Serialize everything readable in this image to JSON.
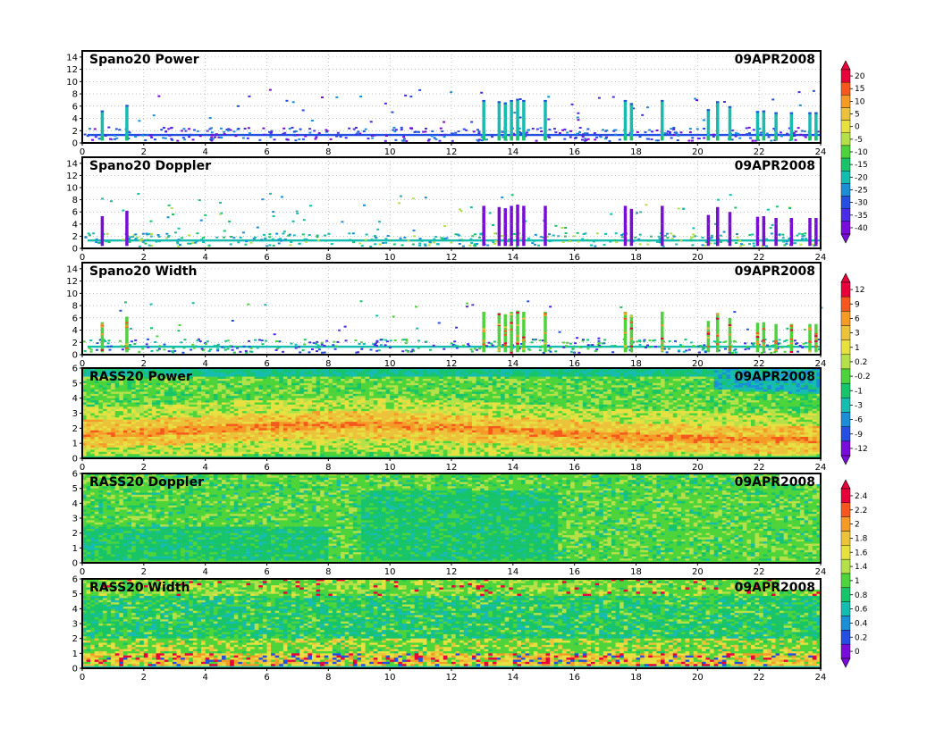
{
  "chart_data": [
    {
      "type": "heatmap",
      "title": "Spano20  Power",
      "date": "09APR2008",
      "x_ticks": [
        "0",
        "2",
        "4",
        "6",
        "8",
        "10",
        "12",
        "14",
        "16",
        "18",
        "20",
        "22",
        "24"
      ],
      "y_ticks": [
        "0",
        "2",
        "4",
        "6",
        "8",
        "10",
        "12",
        "14"
      ],
      "xlim": [
        0,
        24
      ],
      "ylim": [
        0,
        15
      ],
      "grid": true,
      "colorbar": {
        "labels": [
          "20",
          "15",
          "10",
          "5",
          "0",
          "-5",
          "-10",
          "-15",
          "-20",
          "-25",
          "-30",
          "-35",
          "-40"
        ],
        "colors": [
          "#e8003a",
          "#f5581c",
          "#f59a26",
          "#ecc23a",
          "#e6e040",
          "#b4e048",
          "#4cd43a",
          "#18c46a",
          "#16bcb0",
          "#1b8ed8",
          "#2350e0",
          "#4a2ce4",
          "#7a0cd8"
        ]
      },
      "series_kind": "sparse_power",
      "dominant_color": "#16bcb0",
      "columns": [
        [
          0.6,
          5.3
        ],
        [
          1.4,
          6.2
        ],
        [
          13.0,
          7.0
        ],
        [
          13.5,
          6.8
        ],
        [
          13.7,
          6.6
        ],
        [
          13.9,
          7.0
        ],
        [
          14.1,
          7.2
        ],
        [
          14.3,
          7.0
        ],
        [
          15.0,
          7.0
        ],
        [
          17.6,
          7.0
        ],
        [
          17.8,
          6.5
        ],
        [
          18.8,
          7.0
        ],
        [
          20.3,
          5.5
        ],
        [
          20.6,
          6.8
        ],
        [
          21.0,
          6.0
        ],
        [
          21.9,
          5.2
        ],
        [
          22.1,
          5.3
        ],
        [
          22.5,
          5.0
        ],
        [
          23.0,
          5.0
        ],
        [
          23.6,
          5.0
        ],
        [
          23.8,
          5.0
        ]
      ]
    },
    {
      "type": "heatmap",
      "title": "Spano20  Doppler",
      "date": "09APR2008",
      "x_ticks": [
        "0",
        "2",
        "4",
        "6",
        "8",
        "10",
        "12",
        "14",
        "16",
        "18",
        "20",
        "22",
        "24"
      ],
      "y_ticks": [
        "0",
        "2",
        "4",
        "6",
        "8",
        "10",
        "12",
        "14"
      ],
      "xlim": [
        0,
        24
      ],
      "ylim": [
        0,
        15
      ],
      "grid": true,
      "series_kind": "sparse_doppler",
      "dominant_color": "#6b10d8",
      "columns": [
        [
          0.6,
          5.3
        ],
        [
          1.4,
          6.2
        ],
        [
          13.0,
          7.0
        ],
        [
          13.5,
          6.8
        ],
        [
          13.7,
          6.6
        ],
        [
          13.9,
          7.0
        ],
        [
          14.1,
          7.2
        ],
        [
          14.3,
          7.0
        ],
        [
          15.0,
          7.0
        ],
        [
          17.6,
          7.0
        ],
        [
          17.8,
          6.5
        ],
        [
          18.8,
          7.0
        ],
        [
          20.3,
          5.5
        ],
        [
          20.6,
          6.8
        ],
        [
          21.0,
          6.0
        ],
        [
          21.9,
          5.2
        ],
        [
          22.1,
          5.3
        ],
        [
          22.5,
          5.0
        ],
        [
          23.0,
          5.0
        ],
        [
          23.6,
          5.0
        ],
        [
          23.8,
          5.0
        ]
      ]
    },
    {
      "type": "heatmap",
      "title": "Spano20  Width",
      "date": "09APR2008",
      "x_ticks": [
        "0",
        "2",
        "4",
        "6",
        "8",
        "10",
        "12",
        "14",
        "16",
        "18",
        "20",
        "22",
        "24"
      ],
      "y_ticks": [
        "0",
        "2",
        "4",
        "6",
        "8",
        "10",
        "12",
        "14"
      ],
      "xlim": [
        0,
        24
      ],
      "ylim": [
        0,
        15
      ],
      "grid": true,
      "colorbar": {
        "labels": [
          "12",
          "9",
          "6",
          "3",
          "1",
          "0.2",
          "-0.2",
          "-1",
          "-3",
          "-6",
          "-9",
          "-12"
        ],
        "colors": [
          "#e8003a",
          "#f5581c",
          "#f59a26",
          "#ecc23a",
          "#e6e040",
          "#b4e048",
          "#4cd43a",
          "#18c46a",
          "#16bcb0",
          "#1b8ed8",
          "#2350e0",
          "#7a0cd8"
        ]
      },
      "series_kind": "sparse_width",
      "dominant_color": "#4cd43a",
      "columns": [
        [
          0.6,
          5.3
        ],
        [
          1.4,
          6.2
        ],
        [
          13.0,
          7.0
        ],
        [
          13.5,
          6.8
        ],
        [
          13.7,
          6.6
        ],
        [
          13.9,
          7.0
        ],
        [
          14.1,
          7.2
        ],
        [
          14.3,
          7.0
        ],
        [
          15.0,
          7.0
        ],
        [
          17.6,
          7.0
        ],
        [
          17.8,
          6.5
        ],
        [
          18.8,
          7.0
        ],
        [
          20.3,
          5.5
        ],
        [
          20.6,
          6.8
        ],
        [
          21.0,
          6.0
        ],
        [
          21.9,
          5.2
        ],
        [
          22.1,
          5.3
        ],
        [
          22.5,
          5.0
        ],
        [
          23.0,
          5.0
        ],
        [
          23.6,
          5.0
        ],
        [
          23.8,
          5.0
        ]
      ]
    },
    {
      "type": "heatmap",
      "title": "RASS20  Power",
      "date": "09APR2008",
      "x_ticks": [
        "0",
        "2",
        "4",
        "6",
        "8",
        "10",
        "12",
        "14",
        "16",
        "18",
        "20",
        "22",
        "24"
      ],
      "y_ticks": [
        "0",
        "1",
        "2",
        "3",
        "4",
        "5",
        "6"
      ],
      "xlim": [
        0,
        24
      ],
      "ylim": [
        0,
        6
      ],
      "grid": false,
      "series_kind": "dense_power",
      "band_center_km": [
        1.6,
        1.7,
        1.9,
        2.1,
        2.2,
        2.2,
        2.0,
        1.8,
        1.6,
        1.4,
        1.3,
        1.2,
        1.2
      ]
    },
    {
      "type": "heatmap",
      "title": "RASS20  Doppler",
      "date": "09APR2008",
      "x_ticks": [
        "0",
        "2",
        "4",
        "6",
        "8",
        "10",
        "12",
        "14",
        "16",
        "18",
        "20",
        "22",
        "24"
      ],
      "y_ticks": [
        "0",
        "1",
        "2",
        "3",
        "4",
        "5",
        "6"
      ],
      "xlim": [
        0,
        24
      ],
      "ylim": [
        0,
        6
      ],
      "grid": false,
      "colorbar": {
        "labels": [
          "2.4",
          "2.2",
          "2",
          "1.8",
          "1.6",
          "1.4",
          "1",
          "0.8",
          "0.6",
          "0.4",
          "0.2",
          "0"
        ],
        "colors": [
          "#e8003a",
          "#f5581c",
          "#f59a26",
          "#ecc23a",
          "#e6e040",
          "#b4e048",
          "#4cd43a",
          "#18c46a",
          "#16bcb0",
          "#1b8ed8",
          "#2350e0",
          "#7a0cd8"
        ]
      },
      "series_kind": "dense_doppler"
    },
    {
      "type": "heatmap",
      "title": "RASS20  Width",
      "date": "09APR2008",
      "x_ticks": [
        "0",
        "2",
        "4",
        "6",
        "8",
        "10",
        "12",
        "14",
        "16",
        "18",
        "20",
        "22",
        "24"
      ],
      "y_ticks": [
        "0",
        "1",
        "2",
        "3",
        "4",
        "5",
        "6"
      ],
      "xlim": [
        0,
        24
      ],
      "ylim": [
        0,
        6
      ],
      "grid": false,
      "series_kind": "dense_width"
    }
  ]
}
